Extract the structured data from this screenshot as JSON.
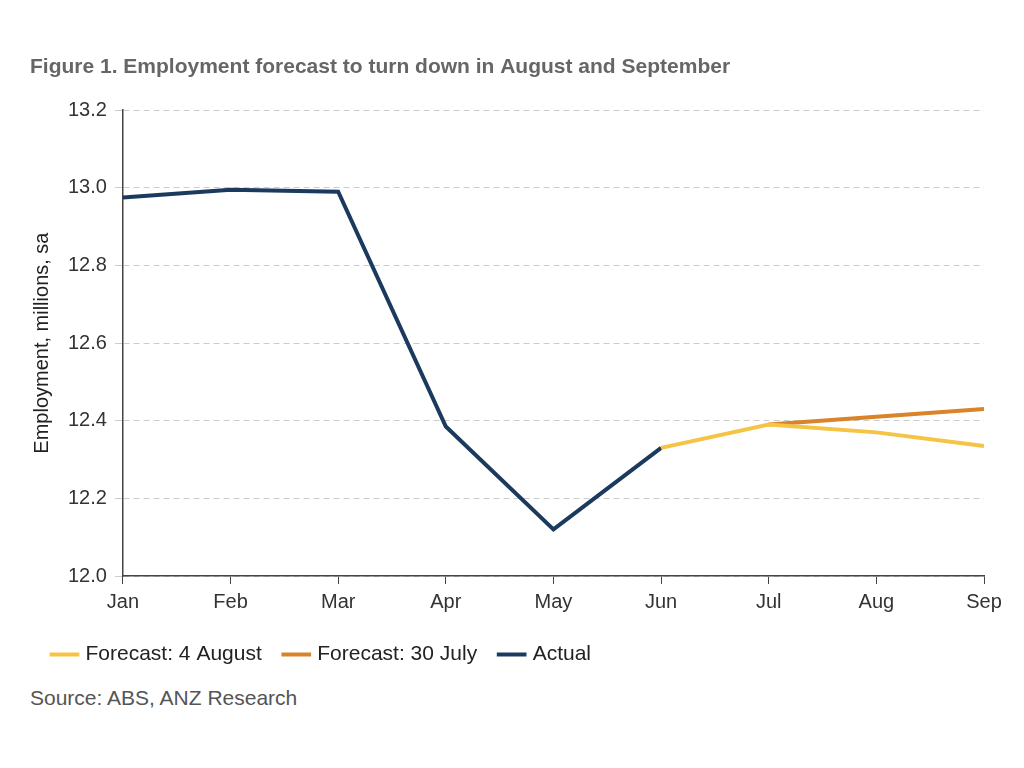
{
  "chart_data": {
    "type": "line",
    "title": "Figure 1. Employment forecast to turn down in August and September",
    "y_label": "Employment, millions, sa",
    "source": "Source: ABS, ANZ Research",
    "categories": [
      "Jan",
      "Feb",
      "Mar",
      "Apr",
      "May",
      "Jun",
      "Jul",
      "Aug",
      "Sep"
    ],
    "series": [
      {
        "name": "Actual",
        "color": "#1c3a5e",
        "values": [
          12.975,
          12.995,
          12.99,
          12.385,
          12.12,
          12.33,
          null,
          null,
          null
        ]
      },
      {
        "name": "Forecast: 30 July",
        "color": "#d9832a",
        "values": [
          null,
          null,
          null,
          null,
          null,
          null,
          12.39,
          12.41,
          12.43
        ]
      },
      {
        "name": "Forecast: 4 August",
        "color": "#f5c445",
        "values": [
          null,
          null,
          null,
          null,
          null,
          12.33,
          12.39,
          12.37,
          12.335
        ]
      }
    ],
    "ylim": [
      12,
      13.2
    ],
    "yticks": [
      {
        "value": 12,
        "label": "12.0"
      },
      12.2,
      12.4,
      12.6,
      12.8,
      {
        "value": 13,
        "label": "13.0"
      },
      13.2
    ],
    "grid": true,
    "legend": "bottom"
  }
}
